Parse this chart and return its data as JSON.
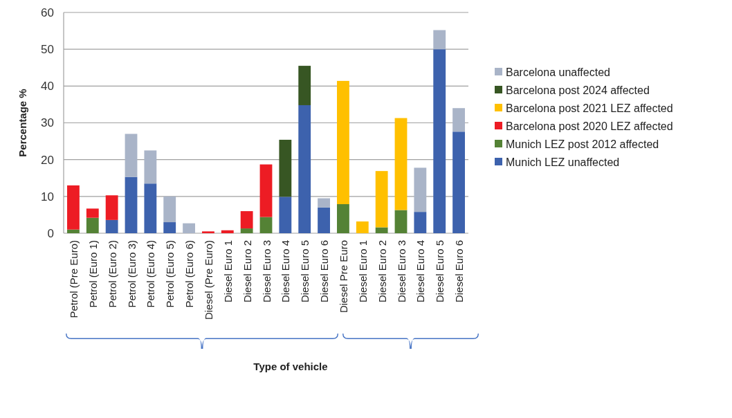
{
  "chart_data": {
    "type": "bar",
    "stacked": true,
    "xlabel": "Type of vehicle",
    "ylabel": "Percentage %",
    "categories": [
      "Petrol (Pre Euro)",
      "Petrol (Euro 1)",
      "Petrol (Euro 2)",
      "Petrol (Euro 3)",
      "Petrol (Euro 4)",
      "Petrol (Euro 5)",
      "Petrol (Euro 6)",
      "Diesel (Pre Euro)",
      "Diesel Euro 1",
      "Diesel Euro 2",
      "Diesel Euro 3",
      "Diesel Euro 4",
      "Diesel Euro 5",
      "Diesel Euro 6",
      "Diesel Pre Euro",
      "Diesel Euro 1",
      "Diesel Euro 2",
      "Diesel Euro 3",
      "Diesel Euro 4",
      "Diesel Euro 5",
      "Diesel Euro 6"
    ],
    "series": [
      {
        "name": "Munich LEZ unaffected",
        "color": "#3d62ad",
        "values": [
          null,
          null,
          3.6,
          15.3,
          13.5,
          3,
          null,
          null,
          null,
          null,
          null,
          9.9,
          34.8,
          7,
          null,
          null,
          null,
          null,
          5.8,
          50,
          27.6
        ]
      },
      {
        "name": "Munich LEZ post 2012 affected",
        "color": "#548235",
        "values": [
          1,
          4.2,
          null,
          null,
          null,
          null,
          null,
          null,
          null,
          1.3,
          4.4,
          null,
          null,
          null,
          7.9,
          null,
          1.6,
          6.3,
          null,
          null,
          null
        ]
      },
      {
        "name": "Barcelona post 2020 LEZ affected",
        "color": "#ed1c24",
        "values": [
          12,
          2.5,
          6.7,
          null,
          null,
          null,
          null,
          0.5,
          0.8,
          4.7,
          14.3,
          null,
          null,
          null,
          null,
          null,
          null,
          null,
          null,
          null,
          null
        ]
      },
      {
        "name": "Barcelona post 2021 LEZ affected",
        "color": "#ffc000",
        "values": [
          null,
          null,
          null,
          null,
          null,
          null,
          null,
          null,
          null,
          null,
          null,
          null,
          null,
          null,
          33.5,
          3.2,
          15.3,
          25,
          null,
          null,
          null
        ]
      },
      {
        "name": "Barcelona post 2024 affected",
        "color": "#375623",
        "values": [
          null,
          null,
          null,
          null,
          null,
          null,
          null,
          null,
          null,
          null,
          null,
          15.5,
          10.7,
          null,
          null,
          null,
          null,
          null,
          null,
          null,
          null
        ]
      },
      {
        "name": "Barcelona unaffected",
        "color": "#a9b4c8",
        "values": [
          null,
          null,
          null,
          11.7,
          9,
          7,
          2.7,
          null,
          null,
          null,
          null,
          null,
          null,
          2.5,
          null,
          null,
          null,
          null,
          12,
          5.2,
          6.4
        ]
      }
    ],
    "ylim": [
      0,
      60
    ],
    "yticks": [
      0,
      10,
      20,
      30,
      40,
      50,
      60
    ],
    "grid": "y",
    "legend": "right"
  }
}
